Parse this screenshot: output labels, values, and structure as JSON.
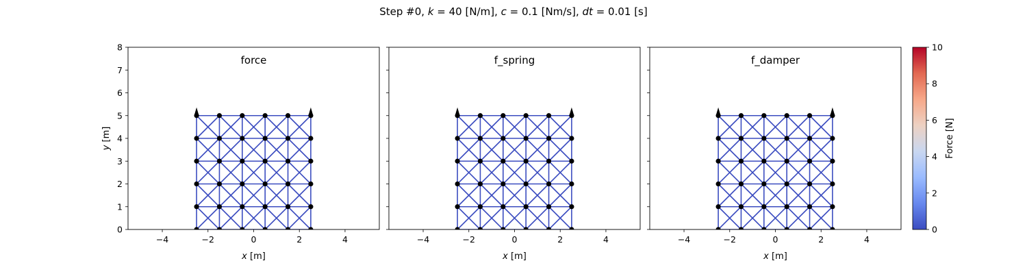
{
  "figure": {
    "title": "Step #0,  k = 40 [N/m],  c = 0.1 [Nm/s],  dt = 0.01 [s]",
    "title_parts": {
      "prefix": "Step #0,  ",
      "k_sym": "k",
      "k_val": " = 40 [N/m],  ",
      "c_sym": "c",
      "c_val": " = 0.1 [Nm/s],  ",
      "dt_sym": "dt",
      "dt_val": " = 0.01 [s]"
    }
  },
  "chart_data": [
    {
      "type": "network",
      "title": "force",
      "xlabel": "x [m]",
      "ylabel": "y [m]",
      "xlim": [
        -5.5,
        5.5
      ],
      "ylim": [
        0,
        8
      ],
      "xticks": [
        -4,
        -2,
        0,
        2,
        4
      ],
      "xtick_labels": [
        "−4",
        "−2",
        "0",
        "2",
        "4"
      ],
      "yticks": [
        0,
        1,
        2,
        3,
        4,
        5,
        6,
        7,
        8
      ],
      "ytick_labels": [
        "0",
        "1",
        "2",
        "3",
        "4",
        "5",
        "6",
        "7",
        "8"
      ],
      "ytick_labels_shown": true,
      "nodes_x": [
        -2.5,
        -1.5,
        -0.5,
        0.5,
        1.5,
        2.5
      ],
      "nodes_y": [
        0,
        1,
        2,
        3,
        4,
        5
      ],
      "edges": "grid with horizontal, vertical and both diagonal springs in every cell",
      "edge_force": 0,
      "arrows": [
        {
          "x": -2.5,
          "y": 5,
          "direction": "up"
        },
        {
          "x": 2.5,
          "y": 5,
          "direction": "up"
        }
      ]
    },
    {
      "type": "network",
      "title": "f_spring",
      "xlabel": "x [m]",
      "ylabel": "",
      "xlim": [
        -5.5,
        5.5
      ],
      "ylim": [
        0,
        8
      ],
      "xticks": [
        -4,
        -2,
        0,
        2,
        4
      ],
      "xtick_labels": [
        "−4",
        "−2",
        "0",
        "2",
        "4"
      ],
      "yticks": [
        0,
        1,
        2,
        3,
        4,
        5,
        6,
        7,
        8
      ],
      "ytick_labels_shown": false,
      "nodes_x": [
        -2.5,
        -1.5,
        -0.5,
        0.5,
        1.5,
        2.5
      ],
      "nodes_y": [
        0,
        1,
        2,
        3,
        4,
        5
      ],
      "edges": "grid with horizontal, vertical and both diagonal springs in every cell",
      "edge_force": 0,
      "arrows": [
        {
          "x": -2.5,
          "y": 5,
          "direction": "up"
        },
        {
          "x": 2.5,
          "y": 5,
          "direction": "up"
        }
      ]
    },
    {
      "type": "network",
      "title": "f_damper",
      "xlabel": "x [m]",
      "ylabel": "",
      "xlim": [
        -5.5,
        5.5
      ],
      "ylim": [
        0,
        8
      ],
      "xticks": [
        -4,
        -2,
        0,
        2,
        4
      ],
      "xtick_labels": [
        "−4",
        "−2",
        "0",
        "2",
        "4"
      ],
      "yticks": [
        0,
        1,
        2,
        3,
        4,
        5,
        6,
        7,
        8
      ],
      "ytick_labels_shown": false,
      "nodes_x": [
        -2.5,
        -1.5,
        -0.5,
        0.5,
        1.5,
        2.5
      ],
      "nodes_y": [
        0,
        1,
        2,
        3,
        4,
        5
      ],
      "edges": "grid with horizontal, vertical and both diagonal springs in every cell",
      "edge_force": 0,
      "arrows": [
        {
          "x": -2.5,
          "y": 5,
          "direction": "up"
        },
        {
          "x": 2.5,
          "y": 5,
          "direction": "up"
        }
      ]
    }
  ],
  "colorbar": {
    "label": "Force [N]",
    "colormap": "coolwarm",
    "range": [
      0,
      10
    ],
    "ticks": [
      0,
      2,
      4,
      6,
      8,
      10
    ],
    "tick_labels": [
      "0",
      "2",
      "4",
      "6",
      "8",
      "10"
    ],
    "stops": [
      "#3b4cc0",
      "#6788ee",
      "#9abbff",
      "#c9d7f0",
      "#edd1c2",
      "#f7a889",
      "#e26952",
      "#b40426"
    ]
  },
  "colors": {
    "edge": "#3b4cc0",
    "node": "#000000",
    "arrow": "#000000",
    "axes": "#000000",
    "background": "#ffffff"
  }
}
